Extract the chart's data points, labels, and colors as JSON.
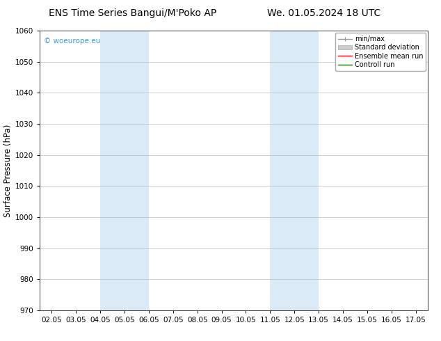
{
  "title_left": "ENS Time Series Bangui/M'Poko AP",
  "title_right": "We. 01.05.2024 18 UTC",
  "ylabel": "Surface Pressure (hPa)",
  "ylim": [
    970,
    1060
  ],
  "yticks": [
    970,
    980,
    990,
    1000,
    1010,
    1020,
    1030,
    1040,
    1050,
    1060
  ],
  "x_labels": [
    "02.05",
    "03.05",
    "04.05",
    "05.05",
    "06.05",
    "07.05",
    "08.05",
    "09.05",
    "10.05",
    "11.05",
    "12.05",
    "13.05",
    "14.05",
    "15.05",
    "16.05",
    "17.05"
  ],
  "x_values": [
    2,
    3,
    4,
    5,
    6,
    7,
    8,
    9,
    10,
    11,
    12,
    13,
    14,
    15,
    16,
    17
  ],
  "xlim": [
    1.5,
    17.5
  ],
  "shaded_bands": [
    {
      "x_start": 4.0,
      "x_end": 6.0
    },
    {
      "x_start": 11.0,
      "x_end": 13.0
    }
  ],
  "shaded_color": "#daeaf6",
  "background_color": "#ffffff",
  "legend_labels": [
    "min/max",
    "Standard deviation",
    "Ensemble mean run",
    "Controll run"
  ],
  "legend_line_colors": [
    "#999999",
    "#cccccc",
    "#ff0000",
    "#007700"
  ],
  "watermark_text": "© woeurope.eu",
  "watermark_color": "#4499cc",
  "title_fontsize": 10,
  "tick_fontsize": 7.5,
  "ylabel_fontsize": 8.5,
  "grid_color": "#bbbbbb",
  "spine_color": "#333333",
  "legend_fontsize": 7
}
